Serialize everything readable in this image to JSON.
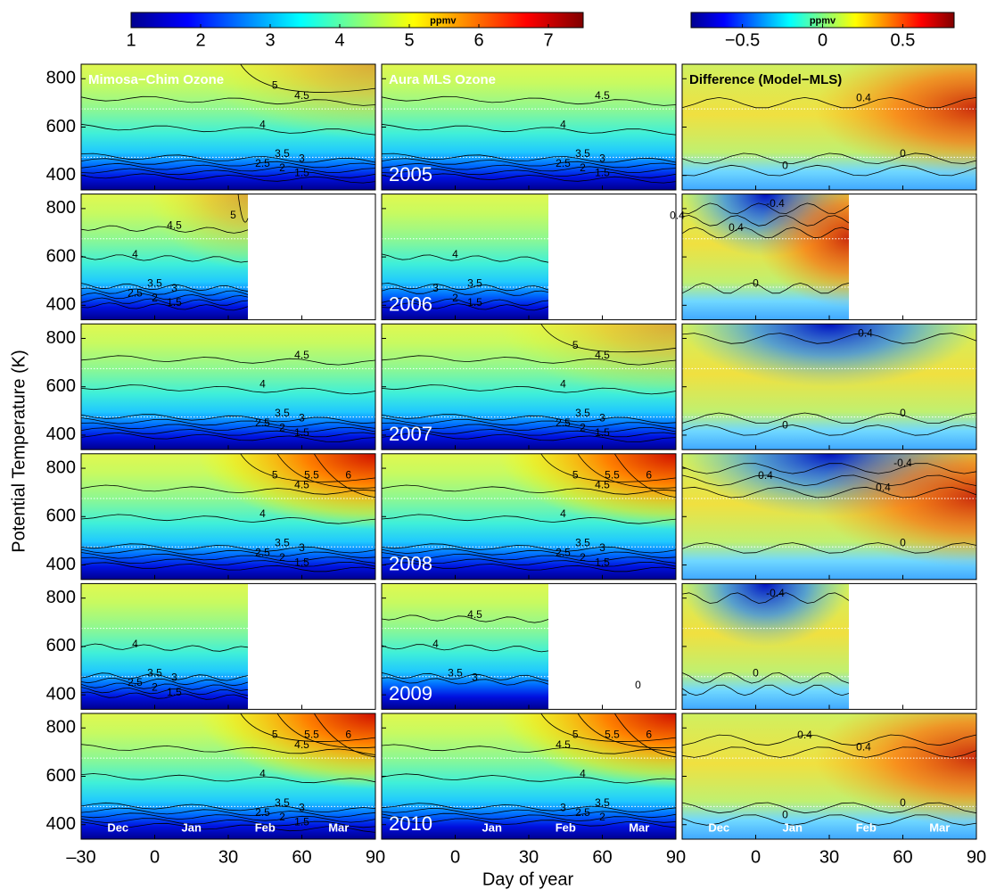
{
  "colorbars": [
    {
      "label": "ppmv",
      "lim": [
        1,
        7.5
      ],
      "ticks": [
        1,
        2,
        3,
        4,
        5,
        6,
        7
      ]
    },
    {
      "label": "ppmv",
      "lim": [
        -0.82,
        0.82
      ],
      "ticks": [
        {
          "value": -0.5,
          "label": "−0.5"
        },
        0,
        0.5
      ]
    }
  ],
  "axes": {
    "y_label": "Potential Temperature (K)",
    "x_label": "Day of year",
    "xlim": [
      -30,
      90
    ],
    "xticks": [
      {
        "value": -30,
        "label": "–30"
      },
      0,
      30,
      60,
      90
    ],
    "ylim": [
      340,
      860
    ],
    "yticks": [
      400,
      600,
      800
    ]
  },
  "reference_lines": [
    475,
    675
  ],
  "columns": [
    {
      "title": "Mimosa−Chim Ozone",
      "month_labels": [
        "Dec",
        "Jan",
        "Feb",
        "Mar"
      ]
    },
    {
      "title": "Aura MLS Ozone",
      "month_labels": [
        null,
        "Jan",
        "Feb",
        "Mar"
      ]
    },
    {
      "title": "Difference (Model−MLS)",
      "month_labels": [
        "Dec",
        "Jan",
        "Feb",
        "Mar"
      ]
    }
  ],
  "rows": [
    {
      "year": "2005",
      "end_day": 90,
      "contours": [
        [
          1.5,
          2,
          2.5,
          3,
          3.5,
          4,
          4.5,
          5
        ],
        [
          1.5,
          2,
          2.5,
          3,
          3.5,
          4,
          4.5
        ],
        [
          0,
          0,
          0.4
        ]
      ]
    },
    {
      "year": "2006",
      "end_day": 38,
      "contours": [
        [
          1.5,
          2,
          2.5,
          3,
          3.5,
          4,
          4.5,
          5
        ],
        [
          1.5,
          2,
          3,
          3.5,
          4
        ],
        [
          -0.4,
          0,
          0.4,
          0.4
        ]
      ]
    },
    {
      "year": "2007",
      "end_day": 90,
      "contours": [
        [
          1.5,
          2,
          2.5,
          3,
          3.5,
          4,
          4.5
        ],
        [
          1.5,
          2,
          2.5,
          3,
          3.5,
          4,
          4.5,
          5
        ],
        [
          0,
          0,
          -0.4
        ]
      ]
    },
    {
      "year": "2008",
      "end_day": 90,
      "contours": [
        [
          1.5,
          2,
          2.5,
          3,
          3.5,
          4,
          4.5,
          5,
          5.5,
          6
        ],
        [
          1.5,
          2,
          2.5,
          3,
          3.5,
          4,
          4.5,
          5,
          5.5,
          6
        ],
        [
          0,
          0.4,
          0.4,
          -0.4
        ]
      ]
    },
    {
      "year": "2009",
      "end_day": 38,
      "contours": [
        [
          1.5,
          2,
          2.5,
          3,
          3.5,
          4
        ],
        [
          3,
          3.5,
          4,
          4.5
        ],
        [
          -0.4,
          0,
          0
        ]
      ]
    },
    {
      "year": "2010",
      "end_day": 90,
      "contours": [
        [
          1.5,
          2,
          2.5,
          3,
          3.5,
          4,
          4.5,
          5,
          5.5,
          6
        ],
        [
          2,
          2.5,
          3,
          3.5,
          4,
          4.5,
          5,
          5.5,
          6
        ],
        [
          0,
          0,
          0.4,
          0.4
        ]
      ]
    }
  ]
}
